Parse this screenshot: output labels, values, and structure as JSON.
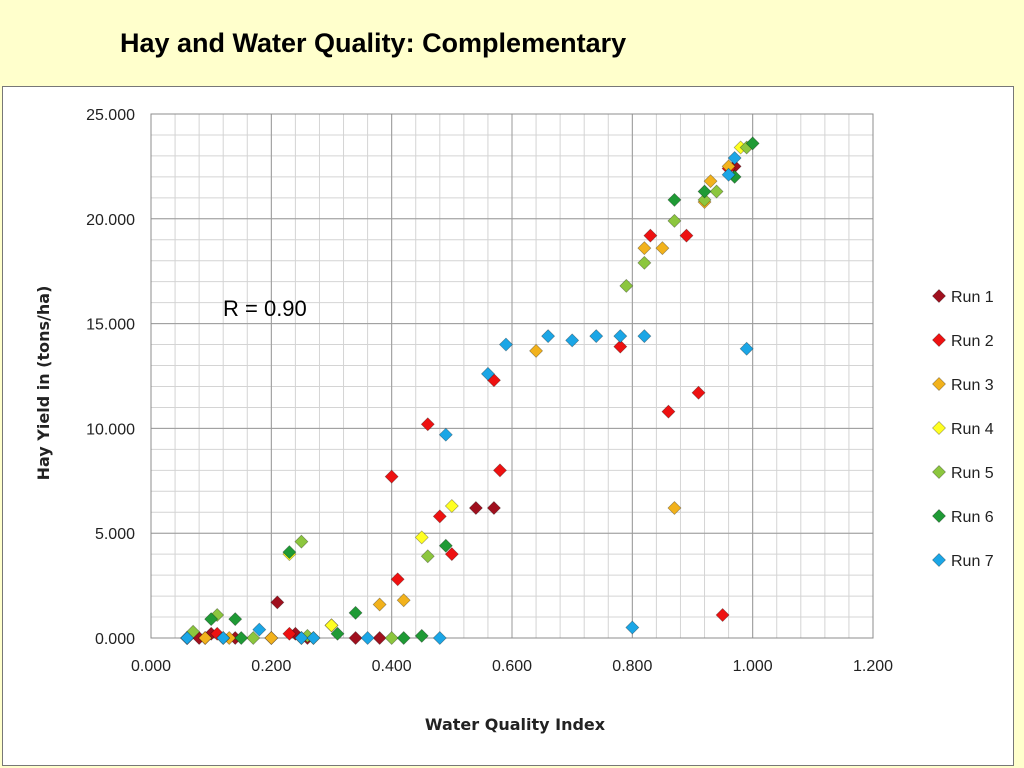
{
  "slide": {
    "title": "Hay and Water Quality: Complementary"
  },
  "chart_data": {
    "type": "scatter",
    "xlabel": "Water Quality Index",
    "ylabel": "Hay Yield in (tons/ha)",
    "xlim": [
      0,
      1.2
    ],
    "ylim": [
      0,
      25
    ],
    "x_ticks": [
      "0.000",
      "0.200",
      "0.400",
      "0.600",
      "0.800",
      "1.000",
      "1.200"
    ],
    "y_ticks": [
      "0.000",
      "5.000",
      "10.000",
      "15.000",
      "20.000",
      "25.000"
    ],
    "grid": true,
    "legend_position": "right",
    "annotation": "R = 0.90",
    "series": [
      {
        "name": "Run 1",
        "color": "#a0101e",
        "points": [
          [
            0.06,
            0
          ],
          [
            0.08,
            0
          ],
          [
            0.1,
            0.2
          ],
          [
            0.14,
            0
          ],
          [
            0.2,
            0
          ],
          [
            0.21,
            1.7
          ],
          [
            0.24,
            0.2
          ],
          [
            0.26,
            0
          ],
          [
            0.3,
            0.6
          ],
          [
            0.34,
            0
          ],
          [
            0.38,
            0
          ],
          [
            0.54,
            6.2
          ],
          [
            0.57,
            6.2
          ],
          [
            0.97,
            22.5
          ]
        ]
      },
      {
        "name": "Run 2",
        "color": "#ee1111",
        "points": [
          [
            0.06,
            0
          ],
          [
            0.09,
            0
          ],
          [
            0.11,
            0.2
          ],
          [
            0.23,
            0.2
          ],
          [
            0.4,
            7.7
          ],
          [
            0.41,
            2.8
          ],
          [
            0.46,
            10.2
          ],
          [
            0.48,
            5.8
          ],
          [
            0.5,
            4.0
          ],
          [
            0.57,
            12.3
          ],
          [
            0.58,
            8.0
          ],
          [
            0.78,
            13.9
          ],
          [
            0.83,
            19.2
          ],
          [
            0.86,
            10.8
          ],
          [
            0.89,
            19.2
          ],
          [
            0.91,
            11.7
          ],
          [
            0.95,
            1.1
          ],
          [
            0.96,
            22.4
          ]
        ]
      },
      {
        "name": "Run 3",
        "color": "#f2b21c",
        "points": [
          [
            0.09,
            0
          ],
          [
            0.13,
            0
          ],
          [
            0.2,
            0
          ],
          [
            0.25,
            0
          ],
          [
            0.38,
            1.6
          ],
          [
            0.42,
            1.8
          ],
          [
            0.64,
            13.7
          ],
          [
            0.82,
            18.6
          ],
          [
            0.85,
            18.6
          ],
          [
            0.87,
            6.2
          ],
          [
            0.92,
            20.8
          ],
          [
            0.93,
            21.8
          ],
          [
            0.96,
            22.5
          ]
        ]
      },
      {
        "name": "Run 4",
        "color": "#ffff22",
        "points": [
          [
            0.12,
            0
          ],
          [
            0.23,
            4.0
          ],
          [
            0.27,
            0
          ],
          [
            0.3,
            0.6
          ],
          [
            0.45,
            4.8
          ],
          [
            0.5,
            6.3
          ],
          [
            0.98,
            23.4
          ]
        ]
      },
      {
        "name": "Run 5",
        "color": "#8cc63e",
        "points": [
          [
            0.07,
            0.3
          ],
          [
            0.11,
            1.1
          ],
          [
            0.17,
            0
          ],
          [
            0.25,
            4.6
          ],
          [
            0.26,
            0.1
          ],
          [
            0.4,
            0
          ],
          [
            0.46,
            3.9
          ],
          [
            0.79,
            16.8
          ],
          [
            0.82,
            17.9
          ],
          [
            0.87,
            19.9
          ],
          [
            0.92,
            20.9
          ],
          [
            0.94,
            21.3
          ],
          [
            0.99,
            23.4
          ]
        ]
      },
      {
        "name": "Run 6",
        "color": "#1f9a35",
        "points": [
          [
            0.1,
            0.9
          ],
          [
            0.14,
            0.9
          ],
          [
            0.15,
            0
          ],
          [
            0.23,
            4.1
          ],
          [
            0.31,
            0.2
          ],
          [
            0.34,
            1.2
          ],
          [
            0.42,
            0
          ],
          [
            0.45,
            0.1
          ],
          [
            0.49,
            4.4
          ],
          [
            0.87,
            20.9
          ],
          [
            0.92,
            21.3
          ],
          [
            0.97,
            22.0
          ],
          [
            1.0,
            23.6
          ]
        ]
      },
      {
        "name": "Run 7",
        "color": "#1ba6e6",
        "points": [
          [
            0.06,
            0
          ],
          [
            0.12,
            0
          ],
          [
            0.18,
            0.4
          ],
          [
            0.25,
            0
          ],
          [
            0.27,
            0
          ],
          [
            0.36,
            0
          ],
          [
            0.48,
            0
          ],
          [
            0.49,
            9.7
          ],
          [
            0.56,
            12.6
          ],
          [
            0.59,
            14.0
          ],
          [
            0.66,
            14.4
          ],
          [
            0.7,
            14.2
          ],
          [
            0.74,
            14.4
          ],
          [
            0.78,
            14.4
          ],
          [
            0.8,
            0.5
          ],
          [
            0.82,
            14.4
          ],
          [
            0.96,
            22.1
          ],
          [
            0.97,
            22.9
          ],
          [
            0.99,
            13.8
          ]
        ]
      }
    ]
  }
}
